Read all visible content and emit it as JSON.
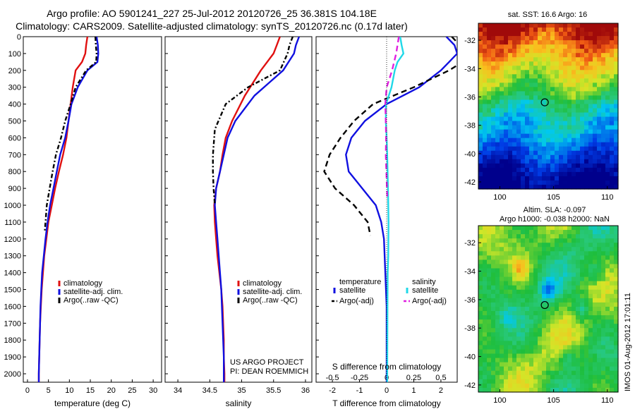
{
  "header": {
    "title_line1": "Argo profile: AO 5901241_227 25-Jul-2012 20120726_25 36.381S 104.18E",
    "title_line2": "Climatology: CARS2009. Satellite-adjusted climatology: synTS_20120726.nc (0.17d later)"
  },
  "colors": {
    "climatology": "#e01010",
    "satellite": "#1010e0",
    "argo": "#000000",
    "satellite_salinity": "#20d8e8",
    "argo_salinity_adj": "#e020e0"
  },
  "chart_data": [
    {
      "id": "temperature",
      "type": "line",
      "xlabel": "temperature (deg C)",
      "ylabel": "",
      "xlim": [
        -1,
        32
      ],
      "ylim": [
        0,
        2050
      ],
      "xticks": [
        "0",
        "5",
        "10",
        "15",
        "20",
        "25",
        "30"
      ],
      "yticks": [
        "0",
        "100",
        "200",
        "300",
        "400",
        "500",
        "600",
        "700",
        "800",
        "900",
        "1000",
        "1100",
        "1200",
        "1300",
        "1400",
        "1500",
        "1600",
        "1700",
        "1800",
        "1900",
        "2000"
      ],
      "legend": [
        "climatology",
        "satellite-adj. clim.",
        "Argo(..raw -QC)"
      ],
      "series": [
        {
          "name": "climatology",
          "color": "#e01010",
          "dash": "",
          "points": [
            [
              14.3,
              0
            ],
            [
              14.0,
              50
            ],
            [
              13.8,
              100
            ],
            [
              13.0,
              150
            ],
            [
              11.5,
              200
            ],
            [
              10.8,
              300
            ],
            [
              10.3,
              400
            ],
            [
              9.8,
              500
            ],
            [
              9.3,
              600
            ],
            [
              8.5,
              700
            ],
            [
              7.5,
              800
            ],
            [
              6.6,
              900
            ],
            [
              5.8,
              1000
            ],
            [
              5.0,
              1100
            ],
            [
              4.5,
              1200
            ],
            [
              4.0,
              1300
            ],
            [
              3.7,
              1400
            ],
            [
              3.4,
              1500
            ],
            [
              3.2,
              1600
            ],
            [
              3.0,
              1700
            ],
            [
              2.9,
              1800
            ],
            [
              2.8,
              1900
            ],
            [
              2.7,
              2000
            ],
            [
              2.7,
              2050
            ]
          ]
        },
        {
          "name": "satellite-adj. clim.",
          "color": "#1010e0",
          "dash": "",
          "points": [
            [
              16.5,
              0
            ],
            [
              16.8,
              50
            ],
            [
              16.9,
              100
            ],
            [
              16.7,
              150
            ],
            [
              14.3,
              200
            ],
            [
              12.0,
              300
            ],
            [
              10.5,
              400
            ],
            [
              9.8,
              500
            ],
            [
              9.0,
              600
            ],
            [
              7.8,
              700
            ],
            [
              7.0,
              800
            ],
            [
              6.2,
              900
            ],
            [
              5.4,
              1000
            ],
            [
              4.8,
              1100
            ],
            [
              4.3,
              1200
            ],
            [
              3.9,
              1300
            ],
            [
              3.5,
              1400
            ],
            [
              3.3,
              1500
            ],
            [
              3.1,
              1600
            ],
            [
              3.0,
              1700
            ],
            [
              2.9,
              1800
            ],
            [
              2.8,
              1900
            ],
            [
              2.7,
              2000
            ],
            [
              2.7,
              2050
            ]
          ]
        },
        {
          "name": "Argo(..raw -QC)",
          "color": "#000000",
          "dash": "6,3,2,3",
          "points": [
            [
              16.2,
              0
            ],
            [
              16.3,
              50
            ],
            [
              16.5,
              100
            ],
            [
              16.4,
              150
            ],
            [
              14.0,
              200
            ],
            [
              11.5,
              300
            ],
            [
              10.3,
              400
            ],
            [
              9.0,
              500
            ],
            [
              8.0,
              600
            ],
            [
              6.8,
              700
            ],
            [
              6.0,
              800
            ],
            [
              5.3,
              900
            ],
            [
              4.6,
              1000
            ],
            [
              4.3,
              1100
            ],
            [
              4.1,
              1160
            ]
          ]
        }
      ]
    },
    {
      "id": "salinity",
      "type": "line",
      "xlabel": "salinity",
      "xlim": [
        33.8,
        36.1
      ],
      "ylim": [
        0,
        2050
      ],
      "xticks": [
        "34",
        "34.5",
        "35",
        "35.5",
        "36"
      ],
      "legend": [
        "climatology",
        "satellite-adj. clim.",
        "Argo(..raw -QC)"
      ],
      "annotation": [
        "US ARGO PROJECT",
        "PI: DEAN ROEMMICH"
      ],
      "series": [
        {
          "name": "climatology",
          "color": "#e01010",
          "dash": "",
          "points": [
            [
              35.6,
              0
            ],
            [
              35.55,
              50
            ],
            [
              35.5,
              100
            ],
            [
              35.3,
              200
            ],
            [
              35.05,
              350
            ],
            [
              34.85,
              500
            ],
            [
              34.75,
              600
            ],
            [
              34.7,
              700
            ],
            [
              34.66,
              800
            ],
            [
              34.6,
              900
            ],
            [
              34.57,
              1000
            ],
            [
              34.58,
              1100
            ],
            [
              34.6,
              1200
            ],
            [
              34.62,
              1300
            ],
            [
              34.65,
              1400
            ],
            [
              34.68,
              1500
            ],
            [
              34.7,
              1600
            ],
            [
              34.71,
              1700
            ],
            [
              34.72,
              1800
            ],
            [
              34.72,
              1900
            ],
            [
              34.73,
              2000
            ],
            [
              34.73,
              2050
            ]
          ]
        },
        {
          "name": "satellite-adj. clim.",
          "color": "#1010e0",
          "dash": "",
          "points": [
            [
              35.9,
              0
            ],
            [
              35.85,
              50
            ],
            [
              35.82,
              100
            ],
            [
              35.65,
              200
            ],
            [
              35.2,
              350
            ],
            [
              34.9,
              500
            ],
            [
              34.78,
              600
            ],
            [
              34.72,
              700
            ],
            [
              34.66,
              800
            ],
            [
              34.6,
              900
            ],
            [
              34.58,
              1000
            ],
            [
              34.6,
              1100
            ],
            [
              34.62,
              1200
            ],
            [
              34.64,
              1300
            ],
            [
              34.66,
              1400
            ],
            [
              34.68,
              1500
            ],
            [
              34.69,
              1600
            ],
            [
              34.7,
              1700
            ],
            [
              34.71,
              1800
            ],
            [
              34.72,
              1900
            ],
            [
              34.72,
              2000
            ],
            [
              34.72,
              2050
            ]
          ]
        },
        {
          "name": "Argo(..raw -QC)",
          "color": "#000000",
          "dash": "6,3,2,3",
          "points": [
            [
              35.8,
              0
            ],
            [
              35.75,
              50
            ],
            [
              35.72,
              100
            ],
            [
              35.6,
              200
            ],
            [
              35.1,
              300
            ],
            [
              34.75,
              400
            ],
            [
              34.58,
              550
            ],
            [
              34.55,
              700
            ],
            [
              34.55,
              800
            ],
            [
              34.56,
              900
            ],
            [
              34.58,
              1000
            ]
          ]
        }
      ]
    },
    {
      "id": "difference",
      "type": "line",
      "xlabel": "T difference from climatology",
      "xlabel_top": "S difference from climatology",
      "xlim": [
        -2.6,
        2.6
      ],
      "ylim": [
        0,
        2050
      ],
      "xticks": [
        "-2",
        "-1",
        "0",
        "1",
        "2"
      ],
      "xticks_top": [
        "-0.5",
        "-0.25",
        "0",
        "0.25",
        "0.5"
      ],
      "legend_headers": [
        "temperature",
        "salinity"
      ],
      "legend": [
        "satellite",
        "Argo(-adj)",
        "satellite",
        "Argo(-adj)"
      ],
      "series": [
        {
          "name": "satellite",
          "color": "#1010e0",
          "dash": "",
          "points": [
            [
              2.2,
              0
            ],
            [
              2.5,
              50
            ],
            [
              2.6,
              100
            ],
            [
              2.3,
              150
            ],
            [
              2.0,
              200
            ],
            [
              1.2,
              300
            ],
            [
              0.0,
              400
            ],
            [
              -0.8,
              500
            ],
            [
              -1.3,
              600
            ],
            [
              -1.5,
              700
            ],
            [
              -1.4,
              800
            ],
            [
              -0.9,
              900
            ],
            [
              -0.4,
              1000
            ],
            [
              -0.2,
              1100
            ],
            [
              -0.1,
              1200
            ],
            [
              -0.05,
              1400
            ],
            [
              0.0,
              1600
            ],
            [
              0.0,
              2050
            ]
          ]
        },
        {
          "name": "Argo(-adj)",
          "color": "#000000",
          "dash": "8,5",
          "points": [
            [
              2.4,
              0
            ],
            [
              2.7,
              50
            ],
            [
              2.75,
              100
            ],
            [
              2.8,
              150
            ],
            [
              2.3,
              200
            ],
            [
              1.0,
              300
            ],
            [
              -0.5,
              400
            ],
            [
              -1.2,
              500
            ],
            [
              -1.7,
              600
            ],
            [
              -2.1,
              700
            ],
            [
              -2.3,
              800
            ],
            [
              -1.9,
              900
            ],
            [
              -1.2,
              1000
            ],
            [
              -0.7,
              1100
            ],
            [
              -0.6,
              1180
            ]
          ]
        },
        {
          "name": "satellite",
          "color": "#20d8e8",
          "dash": "",
          "points": [
            [
              0.5,
              0
            ],
            [
              0.55,
              50
            ],
            [
              0.62,
              100
            ],
            [
              0.4,
              150
            ],
            [
              0.3,
              200
            ],
            [
              0.18,
              300
            ],
            [
              -0.02,
              400
            ],
            [
              -0.03,
              500
            ],
            [
              0.0,
              600
            ],
            [
              0.02,
              700
            ],
            [
              0.05,
              900
            ],
            [
              0.07,
              1100
            ],
            [
              0.06,
              1300
            ],
            [
              0.04,
              1400
            ],
            [
              0.03,
              1600
            ],
            [
              0.02,
              2050
            ]
          ]
        },
        {
          "name": "Argo(-adj)",
          "color": "#e020e0",
          "dash": "8,5",
          "points": [
            [
              0.45,
              0
            ],
            [
              0.4,
              50
            ],
            [
              0.35,
              100
            ],
            [
              0.2,
              200
            ],
            [
              0.0,
              300
            ],
            [
              -0.05,
              400
            ],
            [
              -0.03,
              500
            ],
            [
              -0.02,
              600
            ],
            [
              -0.03,
              700
            ],
            [
              -0.01,
              800
            ],
            [
              0.01,
              900
            ],
            [
              0.02,
              950
            ]
          ]
        }
      ]
    },
    {
      "id": "map_sst",
      "type": "heatmap",
      "title": "sat. SST: 16.6 Argo: 16",
      "xlim": [
        98,
        111
      ],
      "ylim": [
        -42.5,
        -30.8
      ],
      "xticks": [
        "100",
        "105",
        "110"
      ],
      "yticks": [
        "-32",
        "-34",
        "-36",
        "-38",
        "-40",
        "-42"
      ],
      "marker": {
        "lon": 104.18,
        "lat": -36.381
      }
    },
    {
      "id": "map_sla",
      "type": "heatmap",
      "title_line1": "Altim. SLA: -0.097",
      "title_line2": "Argo h1000: -0.038 h2000: NaN",
      "xlim": [
        98,
        111
      ],
      "ylim": [
        -42.5,
        -30.8
      ],
      "xticks": [
        "100",
        "105",
        "110"
      ],
      "yticks": [
        "-32",
        "-34",
        "-36",
        "-38",
        "-40",
        "-42"
      ],
      "marker": {
        "lon": 104.18,
        "lat": -36.381
      }
    }
  ],
  "footer": {
    "imos_stamp": "IMOS 01-Aug-2012 17:01:11"
  }
}
